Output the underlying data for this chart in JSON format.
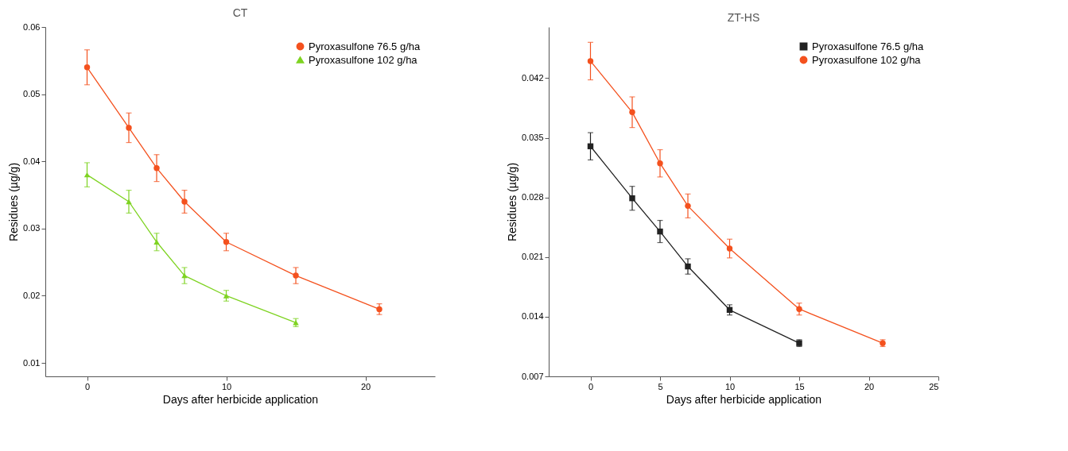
{
  "chart_data": [
    {
      "type": "line",
      "title": "CT",
      "xlabel": "Days after herbicide application",
      "ylabel": "Residues (µg/g)",
      "x": [
        0,
        3,
        5,
        7,
        10,
        15,
        21
      ],
      "series": [
        {
          "name": "Pyroxasulfone 76.5 g/ha",
          "color": "#f4511e",
          "marker": "circle",
          "values": [
            0.054,
            0.045,
            0.039,
            0.034,
            0.028,
            0.023,
            0.018
          ],
          "errors": [
            0.0026,
            0.0022,
            0.002,
            0.0017,
            0.0013,
            0.0012,
            0.0008
          ]
        },
        {
          "name": "Pyroxasulfone 102 g/ha",
          "color": "#7ed321",
          "marker": "triangle",
          "values": [
            0.038,
            0.034,
            0.028,
            0.023,
            0.02,
            0.016,
            null
          ],
          "errors": [
            0.0018,
            0.0017,
            0.0013,
            0.0012,
            0.0008,
            0.0006,
            null
          ]
        }
      ],
      "xlim": [
        -3,
        25
      ],
      "xticks": [
        0,
        10,
        20
      ],
      "ylim": [
        0.008,
        0.06
      ],
      "yticks": [
        0.01,
        0.02,
        0.03,
        0.04,
        0.05,
        0.06
      ],
      "grid": false,
      "legend": "top right"
    },
    {
      "type": "line",
      "title": "ZT-HS",
      "xlabel": "Days after herbicide application",
      "ylabel": "Residues (µg/g)",
      "x": [
        0,
        3,
        5,
        7,
        10,
        15,
        21
      ],
      "series": [
        {
          "name": "Pyroxasulfone 76.5 g/ha",
          "color": "#222222",
          "marker": "square",
          "values": [
            0.034,
            0.0279,
            0.024,
            0.0199,
            0.0148,
            0.0109,
            null
          ],
          "errors": [
            0.0016,
            0.0014,
            0.0013,
            0.0009,
            0.0006,
            0.0004,
            null
          ]
        },
        {
          "name": "Pyroxasulfone 102 g/ha",
          "color": "#f4511e",
          "marker": "circle",
          "values": [
            0.044,
            0.038,
            0.032,
            0.027,
            0.022,
            0.0149,
            0.0109
          ],
          "errors": [
            0.0022,
            0.0018,
            0.0016,
            0.0014,
            0.0011,
            0.0007,
            0.0004
          ]
        }
      ],
      "xlim": [
        -3,
        25
      ],
      "xticks": [
        0,
        5,
        10,
        15,
        20,
        25
      ],
      "ylim": [
        0.007,
        0.048
      ],
      "yticks": [
        0.007,
        0.014,
        0.021,
        0.028,
        0.035,
        0.042
      ],
      "grid": false,
      "legend": "top right"
    }
  ]
}
